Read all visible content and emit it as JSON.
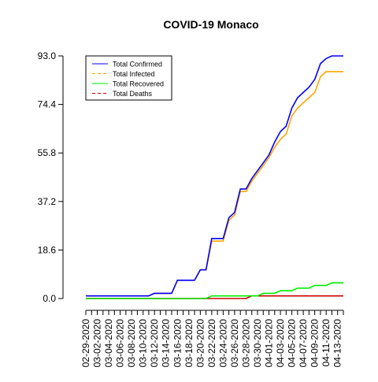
{
  "chart_data": {
    "type": "line",
    "title": "COVID-19 Monaco",
    "xlabel": "",
    "ylabel": "",
    "ylim": [
      0,
      93
    ],
    "yticks": [
      "0.0",
      "18.6",
      "37.2",
      "55.8",
      "74.4",
      "93.0"
    ],
    "grid": false,
    "legend_position": "top-left",
    "x": [
      "02-29-2020",
      "03-01-2020",
      "03-02-2020",
      "03-03-2020",
      "03-04-2020",
      "03-05-2020",
      "03-06-2020",
      "03-07-2020",
      "03-08-2020",
      "03-09-2020",
      "03-10-2020",
      "03-11-2020",
      "03-12-2020",
      "03-13-2020",
      "03-14-2020",
      "03-15-2020",
      "03-16-2020",
      "03-17-2020",
      "03-18-2020",
      "03-19-2020",
      "03-20-2020",
      "03-21-2020",
      "03-22-2020",
      "03-23-2020",
      "03-24-2020",
      "03-25-2020",
      "03-26-2020",
      "03-27-2020",
      "03-28-2020",
      "03-29-2020",
      "03-30-2020",
      "03-31-2020",
      "04-01-2020",
      "04-02-2020",
      "04-03-2020",
      "04-04-2020",
      "04-05-2020",
      "04-06-2020",
      "04-07-2020",
      "04-08-2020",
      "04-09-2020",
      "04-10-2020",
      "04-11-2020",
      "04-12-2020",
      "04-13-2020",
      "04-14-2020"
    ],
    "x_tick_labels": [
      "02-29-2020",
      "03-02-2020",
      "03-04-2020",
      "03-06-2020",
      "03-08-2020",
      "03-10-2020",
      "03-12-2020",
      "03-14-2020",
      "03-16-2020",
      "03-18-2020",
      "03-20-2020",
      "03-22-2020",
      "03-24-2020",
      "03-26-2020",
      "03-28-2020",
      "03-30-2020",
      "04-01-2020",
      "04-03-2020",
      "04-05-2020",
      "04-07-2020",
      "04-09-2020",
      "04-11-2020",
      "04-13-2020"
    ],
    "series": [
      {
        "name": "Total Confirmed",
        "color": "#0000ff",
        "dash": "",
        "values": [
          1,
          1,
          1,
          1,
          1,
          1,
          1,
          1,
          1,
          1,
          1,
          1,
          2,
          2,
          2,
          2,
          7,
          7,
          7,
          7,
          11,
          11,
          23,
          23,
          23,
          31,
          33,
          42,
          42,
          46,
          49,
          52,
          55,
          60,
          64,
          66,
          73,
          77,
          79,
          81,
          84,
          90,
          92,
          93,
          93,
          93
        ]
      },
      {
        "name": "Total Infected",
        "color": "#ffa500",
        "dash": "4,3",
        "values": [
          1,
          1,
          1,
          1,
          1,
          1,
          1,
          1,
          1,
          1,
          1,
          1,
          2,
          2,
          2,
          2,
          7,
          7,
          7,
          7,
          11,
          11,
          22,
          22,
          22,
          30,
          32,
          41,
          41,
          45,
          48,
          51,
          54,
          58,
          61,
          63,
          70,
          73,
          75,
          77,
          79,
          85,
          87,
          87,
          87,
          87
        ]
      },
      {
        "name": "Total Recovered",
        "color": "#00ee00",
        "dash": "",
        "values": [
          0,
          0,
          0,
          0,
          0,
          0,
          0,
          0,
          0,
          0,
          0,
          0,
          0,
          0,
          0,
          0,
          0,
          0,
          0,
          0,
          0,
          0,
          1,
          1,
          1,
          1,
          1,
          1,
          1,
          1,
          1,
          2,
          2,
          2,
          3,
          3,
          3,
          4,
          4,
          4,
          5,
          5,
          5,
          6,
          6,
          6
        ]
      },
      {
        "name": "Total Deaths",
        "color": "#cc0000",
        "dash": "4,3",
        "values": [
          0,
          0,
          0,
          0,
          0,
          0,
          0,
          0,
          0,
          0,
          0,
          0,
          0,
          0,
          0,
          0,
          0,
          0,
          0,
          0,
          0,
          0,
          0,
          0,
          0,
          0,
          0,
          0,
          0,
          1,
          1,
          1,
          1,
          1,
          1,
          1,
          1,
          1,
          1,
          1,
          1,
          1,
          1,
          1,
          1,
          1
        ]
      }
    ]
  }
}
